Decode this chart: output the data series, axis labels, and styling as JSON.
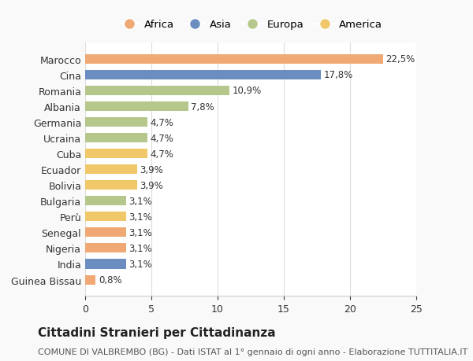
{
  "categories": [
    "Guinea Bissau",
    "India",
    "Nigeria",
    "Senegal",
    "Perù",
    "Bulgaria",
    "Bolivia",
    "Ecuador",
    "Cuba",
    "Ucraina",
    "Germania",
    "Albania",
    "Romania",
    "Cina",
    "Marocco"
  ],
  "values": [
    0.8,
    3.1,
    3.1,
    3.1,
    3.1,
    3.1,
    3.9,
    3.9,
    4.7,
    4.7,
    4.7,
    7.8,
    10.9,
    17.8,
    22.5
  ],
  "labels": [
    "0,8%",
    "3,1%",
    "3,1%",
    "3,1%",
    "3,1%",
    "3,1%",
    "3,9%",
    "3,9%",
    "4,7%",
    "4,7%",
    "4,7%",
    "7,8%",
    "10,9%",
    "17,8%",
    "22,5%"
  ],
  "colors": [
    "#f0a875",
    "#6b8dbf",
    "#f0a875",
    "#f0a875",
    "#f0c86a",
    "#b5c78a",
    "#f0c86a",
    "#f0c86a",
    "#f0c86a",
    "#b5c78a",
    "#b5c78a",
    "#b5c78a",
    "#b5c78a",
    "#6b8dbf",
    "#f0a875"
  ],
  "legend_names": [
    "Africa",
    "Asia",
    "Europa",
    "America"
  ],
  "legend_colors": [
    "#f0a875",
    "#6b8dbf",
    "#b5c78a",
    "#f0c86a"
  ],
  "title": "Cittadini Stranieri per Cittadinanza",
  "subtitle": "COMUNE DI VALBREMBO (BG) - Dati ISTAT al 1° gennaio di ogni anno - Elaborazione TUTTITALIA.IT",
  "xlim": [
    0,
    25
  ],
  "xticks": [
    0,
    5,
    10,
    15,
    20,
    25
  ],
  "background_color": "#f9f9f9",
  "bar_background": "#ffffff",
  "title_fontsize": 11,
  "subtitle_fontsize": 8
}
